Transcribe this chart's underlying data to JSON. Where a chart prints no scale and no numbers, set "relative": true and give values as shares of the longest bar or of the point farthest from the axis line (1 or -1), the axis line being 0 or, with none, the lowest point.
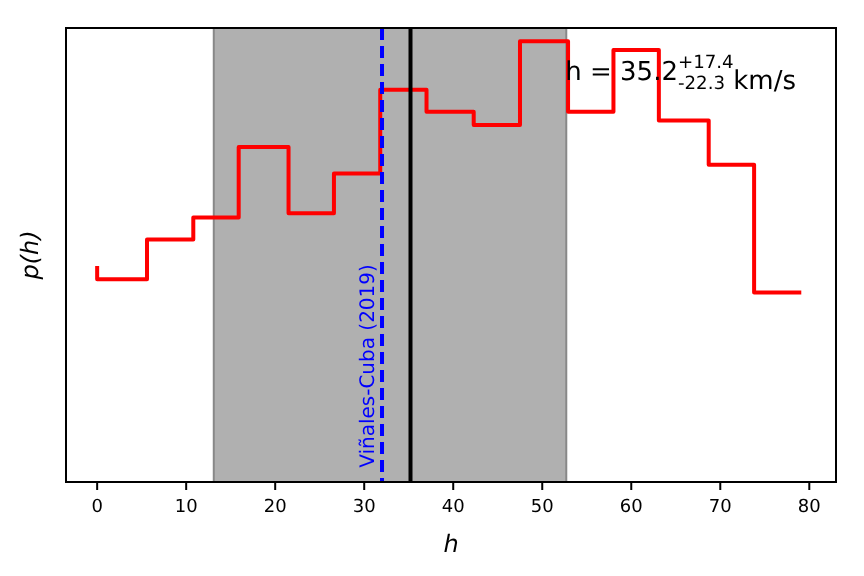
{
  "chart_data": {
    "type": "step",
    "relative": true,
    "xlabel": "h",
    "ylabel": "p(h)",
    "x": [
      0,
      5.6,
      10.8,
      15.9,
      21.5,
      26.6,
      31.8,
      37.0,
      42.3,
      47.5,
      52.9,
      58.0,
      63.1,
      68.7,
      73.8,
      79.1
    ],
    "series": [
      {
        "color": "#ff0000",
        "values": [
          0.49,
          0.46,
          0.55,
          0.6,
          0.76,
          0.61,
          0.7,
          0.89,
          0.84,
          0.81,
          1,
          0.84,
          0.98,
          0.82,
          0.72,
          0.43
        ]
      }
    ],
    "xlim": [
      -3.5,
      83
    ],
    "xticks": [
      0,
      10,
      20,
      30,
      40,
      50,
      60,
      70,
      80
    ],
    "tick_labels": "x",
    "grid": false,
    "bands": [
      {
        "axis": "x",
        "from": 13.1,
        "to": 52.7,
        "color": "#b0b0b0"
      }
    ],
    "ref_lines": [
      {
        "axis": "x",
        "value": 35.2,
        "color": "#000000",
        "line_style": "solid"
      },
      {
        "axis": "x",
        "value": 32.0,
        "label": "Viñales-Cuba (2019)",
        "color": "#0000ff",
        "line_style": "dashed"
      }
    ],
    "annotations": [
      "h = 35.2$^{+17.4}$$_{-22.3}$ km/s"
    ]
  }
}
